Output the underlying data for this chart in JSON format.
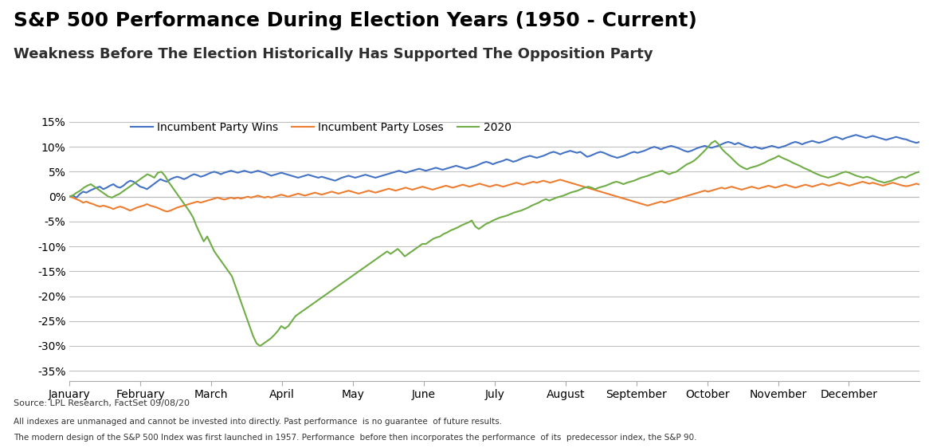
{
  "title": "S&P 500 Performance During Election Years (1950 - Current)",
  "subtitle": "Weakness Before The Election Historically Has Supported The Opposition Party",
  "source_text": "Source: LPL Research, FactSet 09/08/20",
  "footnote1": "All indexes are unmanaged and cannot be invested into directly. Past performance  is no guarantee  of future results.",
  "footnote2": "The modern design of the S&P 500 Index was first launched in 1957. Performance  before then incorporates the performance  of its  predecessor index, the S&P 90.",
  "months": [
    "January",
    "February",
    "March",
    "April",
    "May",
    "June",
    "July",
    "August",
    "September",
    "October",
    "November",
    "December"
  ],
  "title_fontsize": 18,
  "subtitle_fontsize": 13,
  "incumbent_wins_color": "#4472C4",
  "incumbent_loses_color": "#ED7D31",
  "year2020_color": "#70AD47",
  "ylim": [
    -0.37,
    0.17
  ],
  "yticks": [
    -0.35,
    -0.3,
    -0.25,
    -0.2,
    -0.15,
    -0.1,
    -0.05,
    0.0,
    0.05,
    0.1,
    0.15
  ],
  "bg_color": "#FFFFFF",
  "grid_color": "#C0C0C0",
  "incumbent_wins": [
    0.0,
    0.002,
    -0.002,
    0.005,
    0.01,
    0.008,
    0.012,
    0.015,
    0.018,
    0.02,
    0.015,
    0.018,
    0.022,
    0.025,
    0.02,
    0.018,
    0.022,
    0.028,
    0.032,
    0.03,
    0.025,
    0.02,
    0.018,
    0.015,
    0.02,
    0.025,
    0.03,
    0.035,
    0.032,
    0.03,
    0.035,
    0.038,
    0.04,
    0.038,
    0.035,
    0.038,
    0.042,
    0.045,
    0.043,
    0.04,
    0.042,
    0.045,
    0.048,
    0.05,
    0.048,
    0.045,
    0.048,
    0.05,
    0.052,
    0.05,
    0.048,
    0.05,
    0.052,
    0.05,
    0.048,
    0.05,
    0.052,
    0.05,
    0.048,
    0.045,
    0.042,
    0.044,
    0.046,
    0.048,
    0.046,
    0.044,
    0.042,
    0.04,
    0.038,
    0.04,
    0.042,
    0.044,
    0.042,
    0.04,
    0.038,
    0.04,
    0.038,
    0.036,
    0.034,
    0.032,
    0.035,
    0.038,
    0.04,
    0.042,
    0.04,
    0.038,
    0.04,
    0.042,
    0.044,
    0.042,
    0.04,
    0.038,
    0.04,
    0.042,
    0.044,
    0.046,
    0.048,
    0.05,
    0.052,
    0.05,
    0.048,
    0.05,
    0.052,
    0.054,
    0.056,
    0.054,
    0.052,
    0.054,
    0.056,
    0.058,
    0.056,
    0.054,
    0.056,
    0.058,
    0.06,
    0.062,
    0.06,
    0.058,
    0.056,
    0.058,
    0.06,
    0.062,
    0.065,
    0.068,
    0.07,
    0.068,
    0.065,
    0.068,
    0.07,
    0.072,
    0.075,
    0.073,
    0.07,
    0.072,
    0.075,
    0.078,
    0.08,
    0.082,
    0.08,
    0.078,
    0.08,
    0.082,
    0.085,
    0.088,
    0.09,
    0.088,
    0.085,
    0.088,
    0.09,
    0.092,
    0.09,
    0.088,
    0.09,
    0.085,
    0.08,
    0.082,
    0.085,
    0.088,
    0.09,
    0.088,
    0.085,
    0.082,
    0.08,
    0.078,
    0.08,
    0.082,
    0.085,
    0.088,
    0.09,
    0.088,
    0.09,
    0.092,
    0.095,
    0.098,
    0.1,
    0.098,
    0.095,
    0.098,
    0.1,
    0.102,
    0.1,
    0.098,
    0.095,
    0.092,
    0.09,
    0.092,
    0.095,
    0.098,
    0.1,
    0.102,
    0.1,
    0.098,
    0.1,
    0.102,
    0.105,
    0.108,
    0.11,
    0.108,
    0.105,
    0.108,
    0.105,
    0.102,
    0.1,
    0.098,
    0.1,
    0.098,
    0.096,
    0.098,
    0.1,
    0.102,
    0.1,
    0.098,
    0.1,
    0.102,
    0.105,
    0.108,
    0.11,
    0.108,
    0.105,
    0.108,
    0.11,
    0.112,
    0.11,
    0.108,
    0.11,
    0.112,
    0.115,
    0.118,
    0.12,
    0.118,
    0.115,
    0.118,
    0.12,
    0.122,
    0.124,
    0.122,
    0.12,
    0.118,
    0.12,
    0.122,
    0.12,
    0.118,
    0.116,
    0.114,
    0.116,
    0.118,
    0.12,
    0.118,
    0.116,
    0.115,
    0.112,
    0.11,
    0.108,
    0.11
  ],
  "incumbent_loses": [
    0.0,
    -0.002,
    -0.005,
    -0.008,
    -0.012,
    -0.01,
    -0.013,
    -0.015,
    -0.018,
    -0.02,
    -0.018,
    -0.02,
    -0.022,
    -0.025,
    -0.022,
    -0.02,
    -0.022,
    -0.025,
    -0.028,
    -0.025,
    -0.022,
    -0.02,
    -0.018,
    -0.015,
    -0.018,
    -0.02,
    -0.022,
    -0.025,
    -0.028,
    -0.03,
    -0.028,
    -0.025,
    -0.022,
    -0.02,
    -0.018,
    -0.016,
    -0.014,
    -0.012,
    -0.01,
    -0.012,
    -0.01,
    -0.008,
    -0.006,
    -0.004,
    -0.002,
    -0.004,
    -0.006,
    -0.004,
    -0.002,
    -0.004,
    -0.002,
    -0.004,
    -0.002,
    0.0,
    -0.002,
    0.0,
    0.002,
    0.0,
    -0.002,
    0.0,
    -0.002,
    0.0,
    0.002,
    0.004,
    0.002,
    0.0,
    0.002,
    0.004,
    0.006,
    0.004,
    0.002,
    0.004,
    0.006,
    0.008,
    0.006,
    0.004,
    0.006,
    0.008,
    0.01,
    0.008,
    0.006,
    0.008,
    0.01,
    0.012,
    0.01,
    0.008,
    0.006,
    0.008,
    0.01,
    0.012,
    0.01,
    0.008,
    0.01,
    0.012,
    0.014,
    0.016,
    0.014,
    0.012,
    0.014,
    0.016,
    0.018,
    0.016,
    0.014,
    0.016,
    0.018,
    0.02,
    0.018,
    0.016,
    0.014,
    0.016,
    0.018,
    0.02,
    0.022,
    0.02,
    0.018,
    0.02,
    0.022,
    0.024,
    0.022,
    0.02,
    0.022,
    0.024,
    0.026,
    0.024,
    0.022,
    0.02,
    0.022,
    0.024,
    0.022,
    0.02,
    0.022,
    0.024,
    0.026,
    0.028,
    0.026,
    0.024,
    0.026,
    0.028,
    0.03,
    0.028,
    0.03,
    0.032,
    0.03,
    0.028,
    0.03,
    0.032,
    0.034,
    0.032,
    0.03,
    0.028,
    0.026,
    0.024,
    0.022,
    0.02,
    0.018,
    0.016,
    0.014,
    0.012,
    0.01,
    0.008,
    0.006,
    0.004,
    0.002,
    0.0,
    -0.002,
    -0.004,
    -0.006,
    -0.008,
    -0.01,
    -0.012,
    -0.014,
    -0.016,
    -0.018,
    -0.016,
    -0.014,
    -0.012,
    -0.01,
    -0.012,
    -0.01,
    -0.008,
    -0.006,
    -0.004,
    -0.002,
    0.0,
    0.002,
    0.004,
    0.006,
    0.008,
    0.01,
    0.012,
    0.01,
    0.012,
    0.014,
    0.016,
    0.018,
    0.016,
    0.018,
    0.02,
    0.018,
    0.016,
    0.014,
    0.016,
    0.018,
    0.02,
    0.018,
    0.016,
    0.018,
    0.02,
    0.022,
    0.02,
    0.018,
    0.02,
    0.022,
    0.024,
    0.022,
    0.02,
    0.018,
    0.02,
    0.022,
    0.024,
    0.022,
    0.02,
    0.022,
    0.024,
    0.026,
    0.024,
    0.022,
    0.024,
    0.026,
    0.028,
    0.026,
    0.024,
    0.022,
    0.024,
    0.026,
    0.028,
    0.03,
    0.028,
    0.026,
    0.028,
    0.026,
    0.024,
    0.022,
    0.024,
    0.026,
    0.028,
    0.026,
    0.024,
    0.022,
    0.021,
    0.022,
    0.024,
    0.026,
    0.024
  ],
  "year2020": [
    0.0,
    0.003,
    0.008,
    0.012,
    0.018,
    0.022,
    0.025,
    0.02,
    0.015,
    0.01,
    0.005,
    0.0,
    -0.002,
    0.002,
    0.005,
    0.01,
    0.015,
    0.02,
    0.025,
    0.03,
    0.035,
    0.04,
    0.045,
    0.042,
    0.038,
    0.048,
    0.05,
    0.042,
    0.03,
    0.02,
    0.01,
    0.0,
    -0.01,
    -0.02,
    -0.03,
    -0.042,
    -0.06,
    -0.075,
    -0.09,
    -0.08,
    -0.095,
    -0.11,
    -0.12,
    -0.13,
    -0.14,
    -0.15,
    -0.16,
    -0.18,
    -0.2,
    -0.22,
    -0.24,
    -0.26,
    -0.28,
    -0.295,
    -0.3,
    -0.295,
    -0.29,
    -0.285,
    -0.278,
    -0.27,
    -0.26,
    -0.265,
    -0.26,
    -0.25,
    -0.24,
    -0.235,
    -0.23,
    -0.225,
    -0.22,
    -0.215,
    -0.21,
    -0.205,
    -0.2,
    -0.195,
    -0.19,
    -0.185,
    -0.18,
    -0.175,
    -0.17,
    -0.165,
    -0.16,
    -0.155,
    -0.15,
    -0.145,
    -0.14,
    -0.135,
    -0.13,
    -0.125,
    -0.12,
    -0.115,
    -0.11,
    -0.115,
    -0.11,
    -0.105,
    -0.112,
    -0.12,
    -0.115,
    -0.11,
    -0.105,
    -0.1,
    -0.095,
    -0.095,
    -0.09,
    -0.085,
    -0.082,
    -0.08,
    -0.075,
    -0.072,
    -0.068,
    -0.065,
    -0.062,
    -0.058,
    -0.055,
    -0.052,
    -0.048,
    -0.06,
    -0.065,
    -0.06,
    -0.055,
    -0.052,
    -0.048,
    -0.045,
    -0.042,
    -0.04,
    -0.038,
    -0.035,
    -0.032,
    -0.03,
    -0.028,
    -0.025,
    -0.022,
    -0.018,
    -0.015,
    -0.012,
    -0.008,
    -0.005,
    -0.008,
    -0.005,
    -0.002,
    0.0,
    0.002,
    0.005,
    0.008,
    0.01,
    0.012,
    0.015,
    0.018,
    0.02,
    0.018,
    0.015,
    0.018,
    0.02,
    0.022,
    0.025,
    0.028,
    0.03,
    0.028,
    0.025,
    0.028,
    0.03,
    0.032,
    0.035,
    0.038,
    0.04,
    0.042,
    0.045,
    0.048,
    0.05,
    0.052,
    0.048,
    0.045,
    0.048,
    0.05,
    0.055,
    0.06,
    0.065,
    0.068,
    0.072,
    0.078,
    0.085,
    0.092,
    0.1,
    0.108,
    0.112,
    0.105,
    0.095,
    0.088,
    0.082,
    0.075,
    0.068,
    0.062,
    0.058,
    0.055,
    0.058,
    0.06,
    0.062,
    0.065,
    0.068,
    0.072,
    0.075,
    0.078,
    0.082,
    0.078,
    0.075,
    0.072,
    0.068,
    0.065,
    0.062,
    0.058,
    0.055,
    0.052,
    0.048,
    0.045,
    0.042,
    0.04,
    0.038,
    0.04,
    0.042,
    0.045,
    0.048,
    0.05,
    0.048,
    0.045,
    0.042,
    0.04,
    0.038,
    0.04,
    0.038,
    0.035,
    0.032,
    0.03,
    0.028,
    0.03,
    0.032,
    0.035,
    0.038,
    0.04,
    0.038,
    0.042,
    0.045,
    0.048,
    0.05
  ]
}
